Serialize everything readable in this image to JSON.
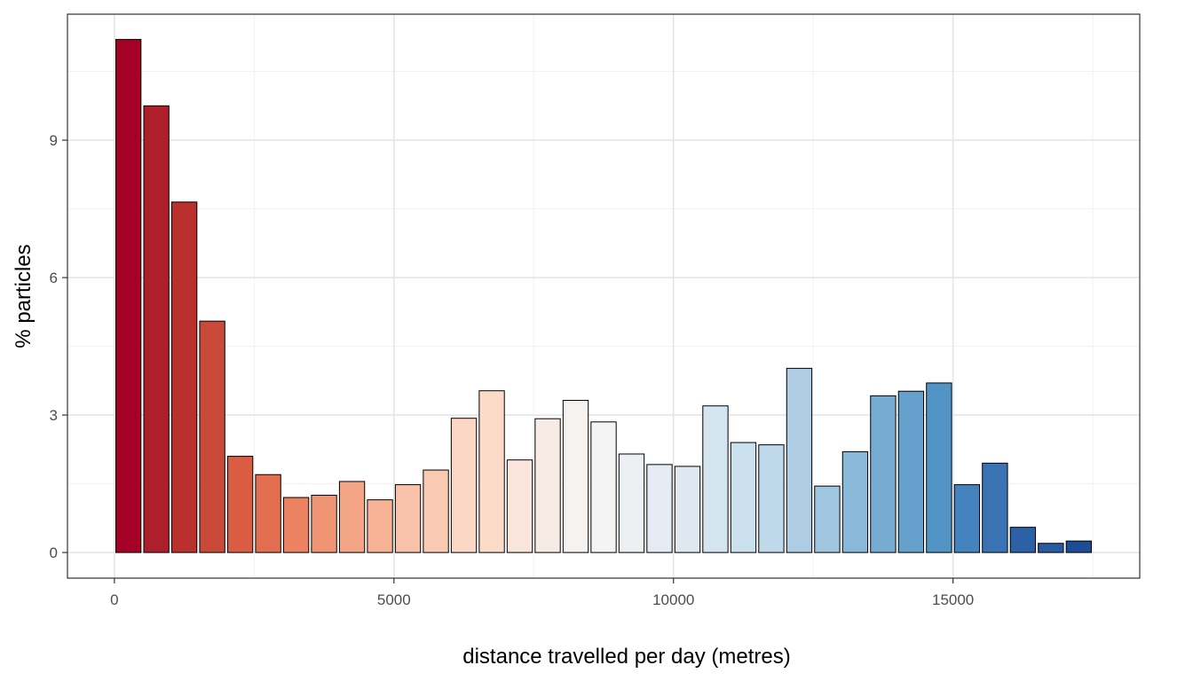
{
  "chart_data": {
    "type": "bar",
    "xlabel": "distance travelled per day (metres)",
    "ylabel": "% particles",
    "bin_width": 500,
    "x": [
      250,
      750,
      1250,
      1750,
      2250,
      2750,
      3250,
      3750,
      4250,
      4750,
      5250,
      5750,
      6250,
      6750,
      7250,
      7750,
      8250,
      8750,
      9250,
      9750,
      10250,
      10750,
      11250,
      11750,
      12250,
      12750,
      13250,
      13750,
      14250,
      14750,
      15250,
      15750,
      16250,
      16750,
      17250
    ],
    "values": [
      11.2,
      9.75,
      7.65,
      5.05,
      2.1,
      1.7,
      1.2,
      1.25,
      1.55,
      1.15,
      1.48,
      1.8,
      2.93,
      3.53,
      2.02,
      2.92,
      3.32,
      2.85,
      2.15,
      1.92,
      1.88,
      3.2,
      2.4,
      2.35,
      4.02,
      1.45,
      2.2,
      3.42,
      3.52,
      3.7,
      1.48,
      1.95,
      0.55,
      0.2,
      0.25
    ],
    "colors": [
      "#a50026",
      "#ad1f2a",
      "#b9302f",
      "#c94a3b",
      "#d95c43",
      "#e36d4f",
      "#ec8261",
      "#f09573",
      "#f4a585",
      "#f7b295",
      "#f8c1a9",
      "#fac9b2",
      "#fcd7c5",
      "#fcdcc9",
      "#f9e5dc",
      "#f7ebe5",
      "#f5f2f0",
      "#f4f4f4",
      "#edf0f3",
      "#e4ebf2",
      "#dfe8f1",
      "#d5e5f0",
      "#cae0ed",
      "#c0d9ea",
      "#aecde4",
      "#9fc5df",
      "#8ab8d9",
      "#76abd2",
      "#65a1cc",
      "#5294c5",
      "#4483bd",
      "#3a72b4",
      "#2c61a6",
      "#275aa0",
      "#1e4d98"
    ],
    "xticks": [
      0,
      5000,
      10000,
      15000
    ],
    "yticks": [
      0,
      3,
      6,
      9
    ],
    "xlim": [
      -840,
      18340
    ],
    "ylim": [
      -0.56,
      11.75
    ],
    "grid": true,
    "legend": "none"
  }
}
